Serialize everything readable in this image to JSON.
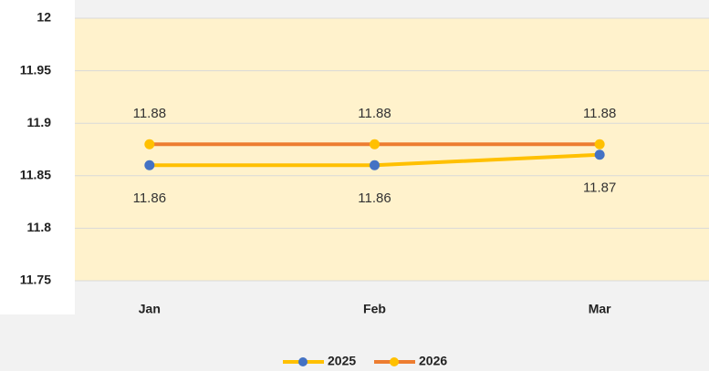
{
  "chart_data": {
    "type": "line",
    "categories": [
      "Jan",
      "Feb",
      "Mar"
    ],
    "series": [
      {
        "name": "2025",
        "color": "#FFC000",
        "marker_color": "#4472C4",
        "values": [
          11.86,
          11.86,
          11.87
        ],
        "label_position": "below"
      },
      {
        "name": "2026",
        "color": "#ED7D31",
        "marker_color": "#FFC000",
        "values": [
          11.88,
          11.88,
          11.88
        ],
        "label_position": "above"
      }
    ],
    "ylim": [
      11.75,
      12
    ],
    "yticks": [
      11.75,
      11.8,
      11.85,
      11.9,
      11.95,
      12
    ],
    "grid": true,
    "legend": "bottom"
  }
}
